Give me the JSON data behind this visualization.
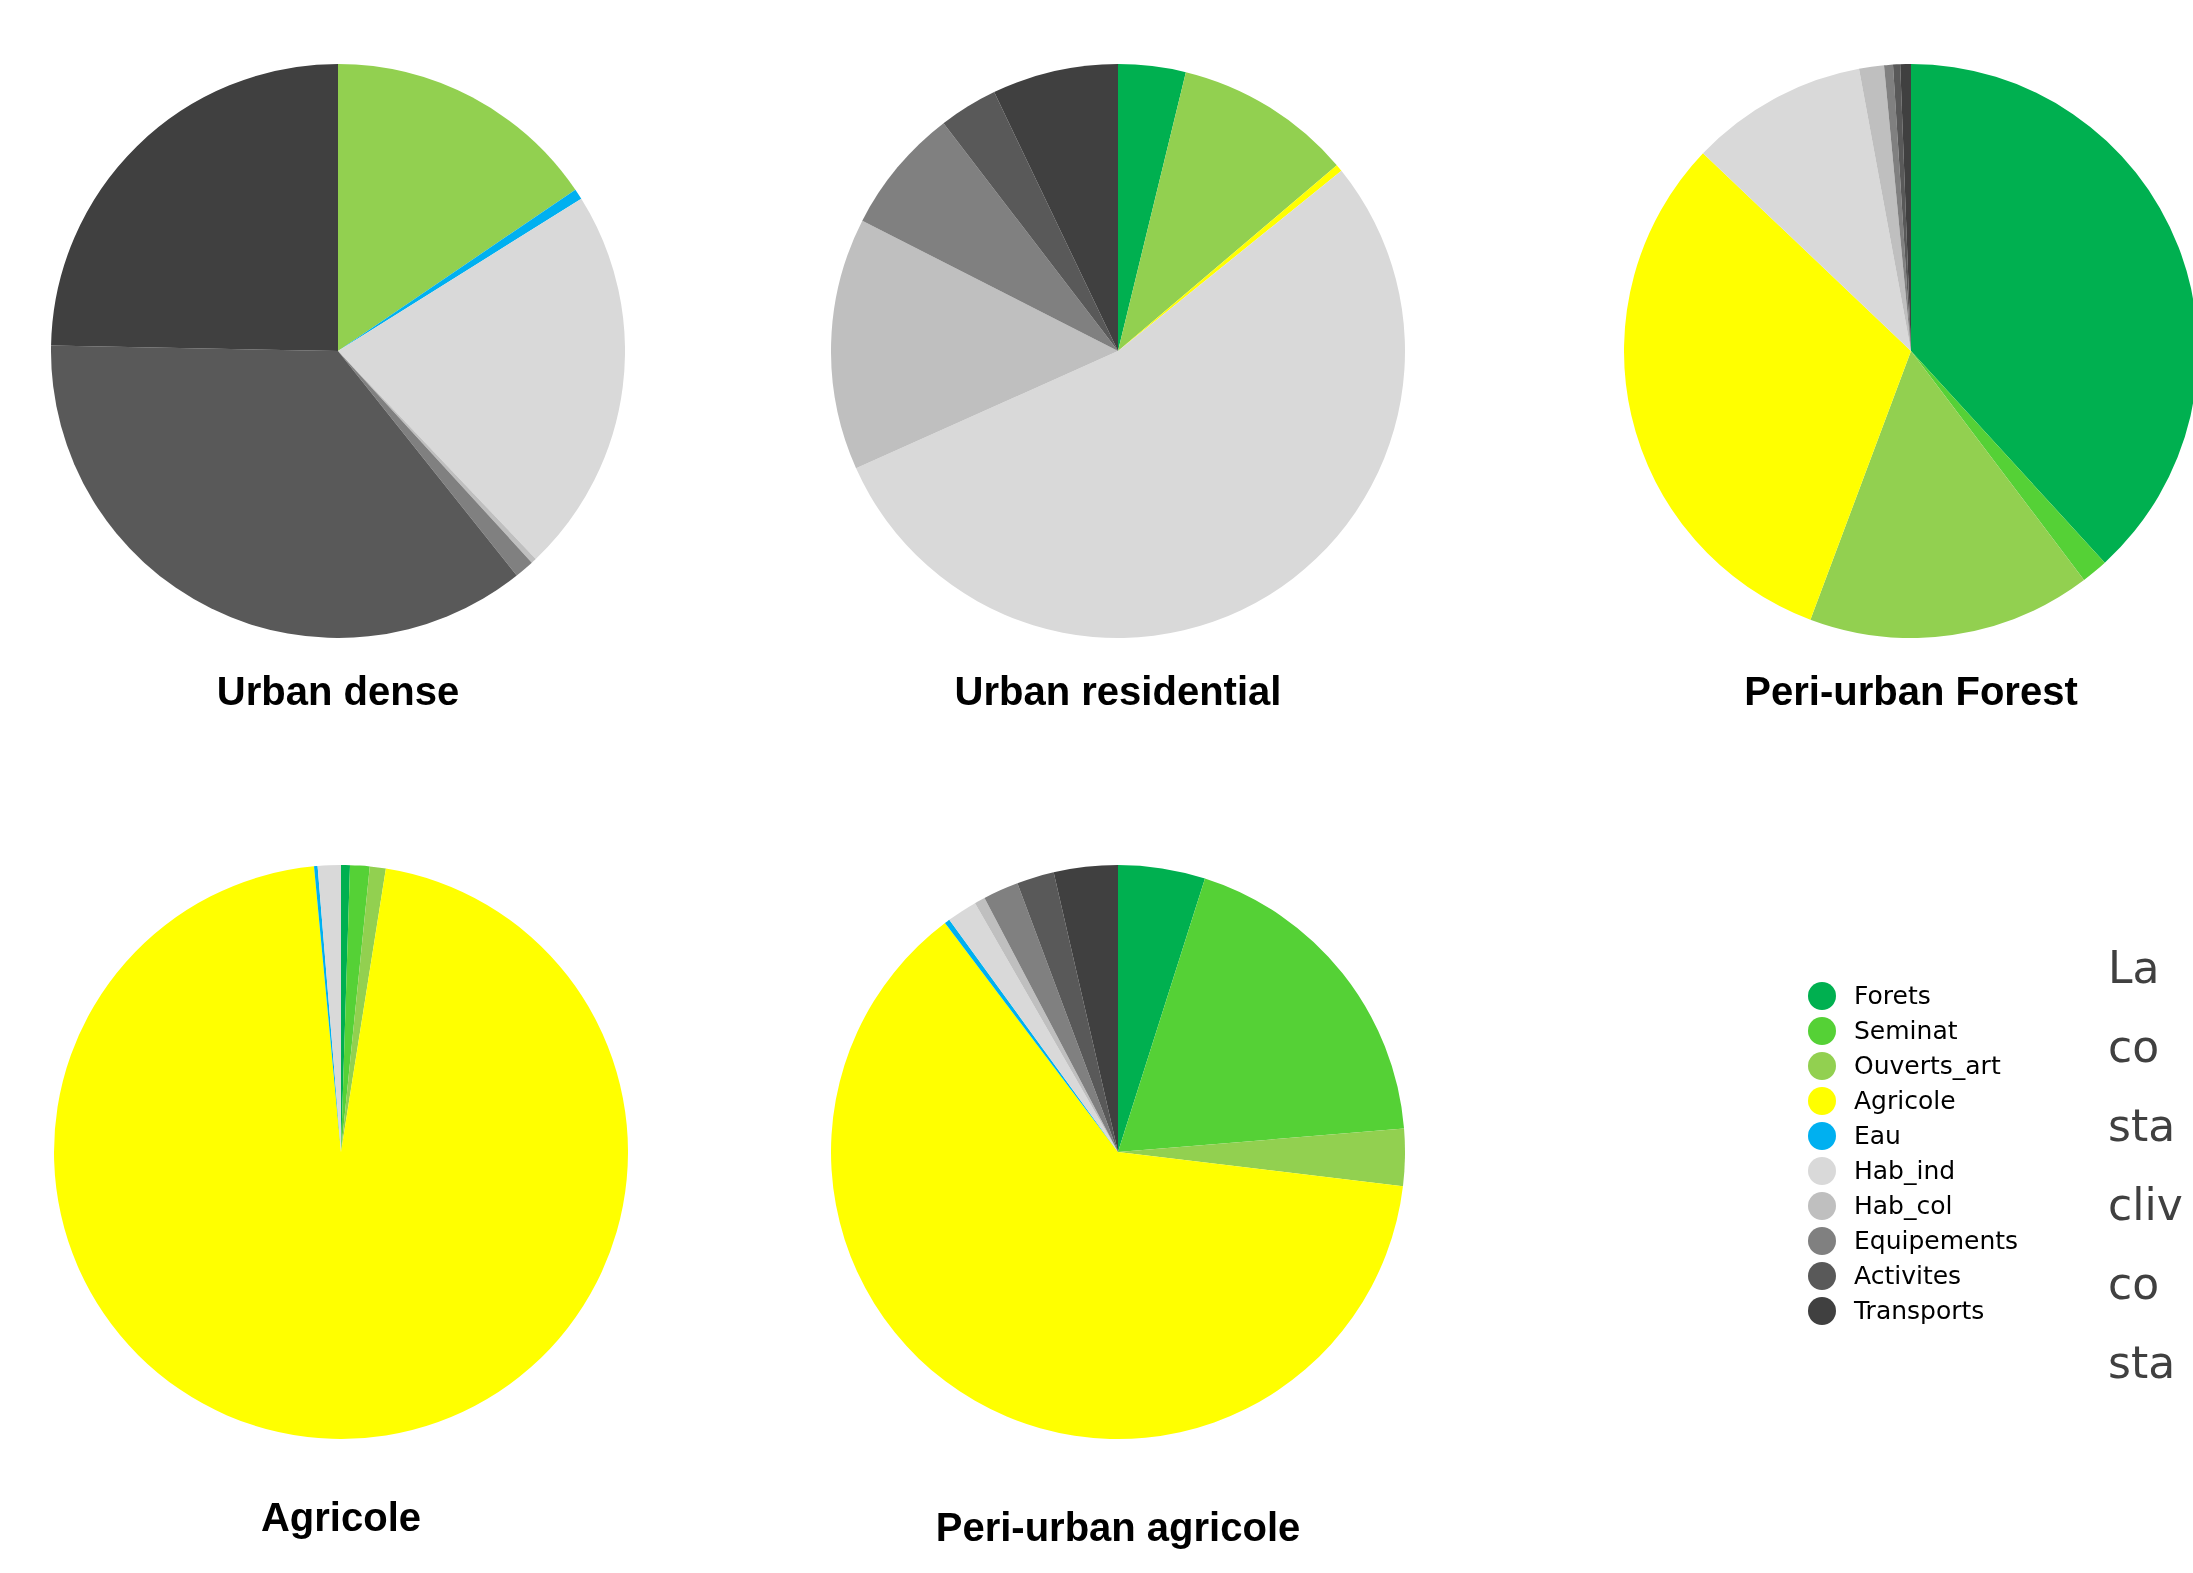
{
  "chart_data": [
    {
      "type": "pie",
      "title": "Urban dense",
      "categories": [
        "Forets",
        "Seminat",
        "Ouverts_art",
        "Agricole",
        "Eau",
        "Hab_ind",
        "Hab_col",
        "Equipements",
        "Activites",
        "Transports"
      ],
      "values": [
        0,
        0,
        15.5,
        0,
        0.6,
        21.8,
        0.3,
        1.1,
        36.0,
        24.7
      ],
      "colors": [
        "#00b050",
        "#55d136",
        "#92d050",
        "#ffff00",
        "#00b0f0",
        "#d9d9d9",
        "#bfbfbf",
        "#808080",
        "#595959",
        "#404040"
      ],
      "legend": "right"
    },
    {
      "type": "pie",
      "title": "Urban residential",
      "categories": [
        null,
        null,
        null,
        null,
        null,
        null,
        null,
        null,
        null,
        null
      ],
      "values": [
        3.8,
        0,
        10.0,
        0.4,
        0,
        54.1,
        14.2,
        7.1,
        3.3,
        7.1
      ],
      "colors": [
        "#00b050",
        "#55d136",
        "#92d050",
        "#ffff00",
        "#00b0f0",
        "#d9d9d9",
        "#bfbfbf",
        "#808080",
        "#595959",
        "#404040"
      ]
    },
    {
      "type": "pie",
      "title": "Peri-urban Forest",
      "categories": [
        null,
        null,
        null,
        null,
        null,
        null,
        null,
        null,
        null,
        null
      ],
      "values": [
        38.2,
        1.5,
        16.0,
        31.4,
        0,
        10.0,
        1.4,
        0.5,
        0.4,
        0.6
      ],
      "colors": [
        "#00b050",
        "#55d136",
        "#92d050",
        "#ffff00",
        "#00b0f0",
        "#d9d9d9",
        "#bfbfbf",
        "#808080",
        "#595959",
        "#404040"
      ]
    },
    {
      "type": "pie",
      "title": "Agricole",
      "categories": [
        null,
        null,
        null,
        null,
        null,
        null,
        null,
        null,
        null,
        null
      ],
      "values": [
        0.5,
        1.1,
        0.9,
        96.0,
        0.2,
        1.3,
        0,
        0,
        0,
        0
      ],
      "colors": [
        "#00b050",
        "#55d136",
        "#92d050",
        "#ffff00",
        "#00b0f0",
        "#d9d9d9",
        "#bfbfbf",
        "#808080",
        "#595959",
        "#404040"
      ]
    },
    {
      "type": "pie",
      "title": "Peri-urban agricole",
      "categories": [
        null,
        null,
        null,
        null,
        null,
        null,
        null,
        null,
        null,
        null
      ],
      "values": [
        4.9,
        18.8,
        3.2,
        62.8,
        0.3,
        1.7,
        0.6,
        2.0,
        2.1,
        3.6
      ],
      "colors": [
        "#00b050",
        "#55d136",
        "#92d050",
        "#ffff00",
        "#00b0f0",
        "#d9d9d9",
        "#bfbfbf",
        "#808080",
        "#595959",
        "#404040"
      ]
    },
    {
      "type": "other",
      "annotations": [
        "La",
        "co",
        "sta",
        "cliv",
        "co",
        "sta"
      ]
    }
  ]
}
